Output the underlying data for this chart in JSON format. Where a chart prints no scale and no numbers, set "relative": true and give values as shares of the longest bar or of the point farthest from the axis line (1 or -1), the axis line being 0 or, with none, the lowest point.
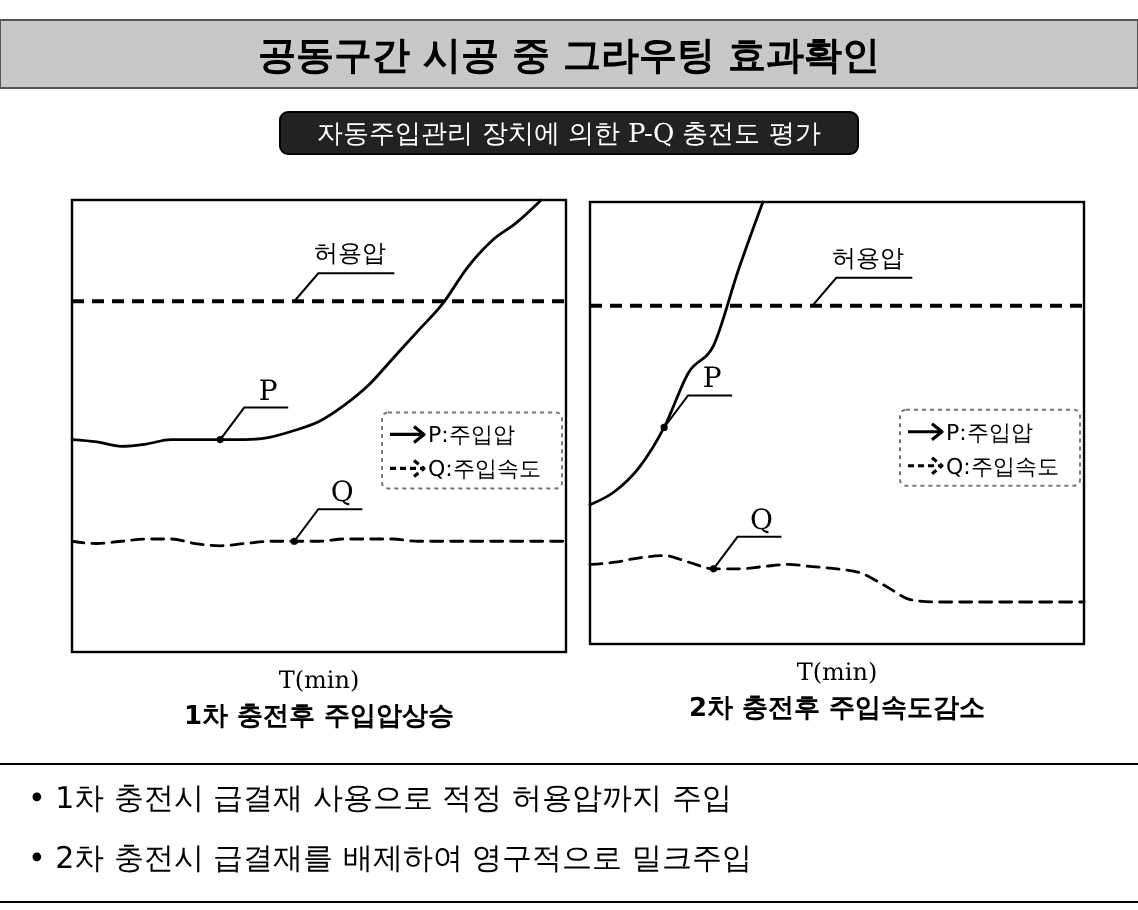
{
  "chart_data": [
    {
      "type": "other",
      "title": "공동구간 시공 중 그라우팅 효과확인",
      "subtitle": "자동주입관리 장치에 의한 P-Q 충전도 평가"
    },
    {
      "type": "line",
      "relative": true,
      "title": "1차 충전후 주입압상승",
      "xlabel": "T(min)",
      "legend": "right",
      "categories": [
        null,
        null,
        null,
        null,
        null,
        null,
        null,
        null,
        null,
        null,
        null,
        null,
        null,
        null,
        null,
        null,
        null,
        null,
        null,
        null,
        null
      ],
      "series": [
        {
          "name": "P:주입압",
          "color": "#000000",
          "line_style": "solid",
          "values": [
            0.47,
            0.465,
            0.455,
            0.46,
            0.47,
            0.47,
            0.47,
            0.47,
            0.475,
            0.49,
            0.51,
            0.545,
            0.59,
            0.65,
            0.71,
            0.77,
            0.85,
            0.91,
            0.95,
            1.0,
            null
          ]
        },
        {
          "name": "Q:주입속도",
          "color": "#000000",
          "line_style": "dashed",
          "values": [
            0.245,
            0.24,
            0.245,
            0.25,
            0.25,
            0.24,
            0.235,
            0.24,
            0.245,
            0.245,
            0.245,
            0.25,
            0.25,
            0.25,
            0.245,
            0.245,
            0.245,
            0.245,
            0.245,
            0.245,
            0.245
          ]
        }
      ],
      "ref_lines": [
        {
          "axis": "y",
          "value": 0.776,
          "label": "허용압",
          "color": "#000000",
          "line_style": "dashed"
        }
      ],
      "annotations": [
        "P",
        "Q"
      ]
    },
    {
      "type": "line",
      "relative": true,
      "title": "2차 충전후 주입속도감소",
      "xlabel": "T(min)",
      "legend": "right",
      "categories": [
        null,
        null,
        null,
        null,
        null,
        null,
        null,
        null,
        null,
        null,
        null,
        null,
        null,
        null,
        null,
        null,
        null,
        null,
        null,
        null,
        null
      ],
      "series": [
        {
          "name": "P:주입압",
          "color": "#000000",
          "line_style": "solid",
          "values": [
            0.315,
            0.345,
            0.4,
            0.49,
            0.615,
            0.675,
            0.845,
            1.0,
            null,
            null,
            null,
            null,
            null,
            null,
            null,
            null,
            null,
            null,
            null,
            null,
            null
          ]
        },
        {
          "name": "Q:주입속도",
          "color": "#000000",
          "line_style": "dashed",
          "values": [
            0.18,
            0.185,
            0.195,
            0.2,
            0.185,
            0.17,
            0.17,
            0.175,
            0.18,
            0.175,
            0.17,
            0.16,
            0.13,
            0.1,
            0.095,
            0.095,
            0.095,
            0.095,
            0.095,
            0.095,
            0.095
          ]
        }
      ],
      "ref_lines": [
        {
          "axis": "y",
          "value": 0.765,
          "label": "허용압",
          "color": "#000000",
          "line_style": "dashed"
        }
      ],
      "annotations": [
        "P",
        "Q"
      ]
    },
    {
      "type": "other",
      "annotations": [
        "• 1차 충전시 급결재 사용으로 적정 허용압까지 주입",
        "• 2차 충전시 급결재를 배제하여 영구적으로 밀크주입"
      ]
    }
  ]
}
